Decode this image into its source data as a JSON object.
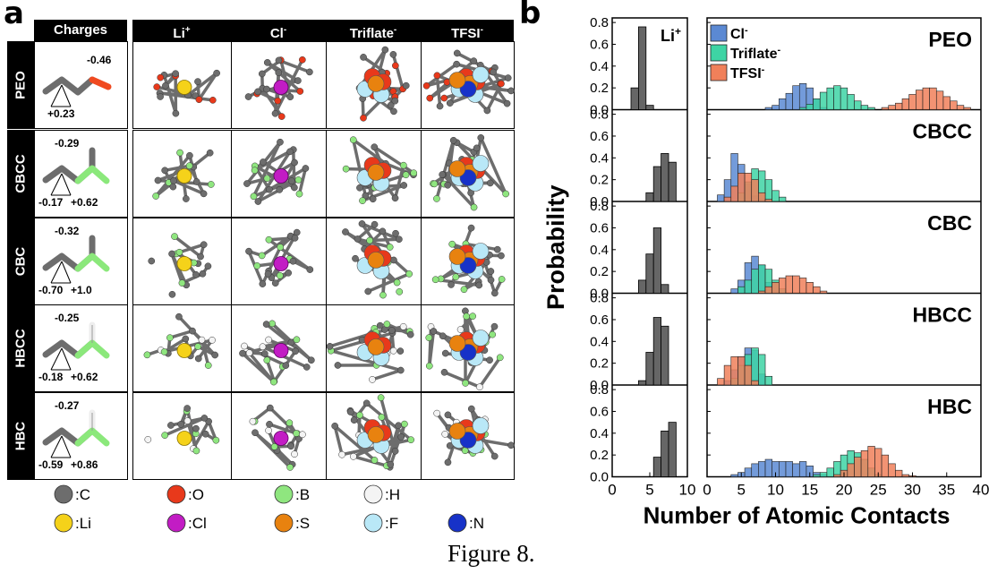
{
  "panel_a": {
    "letter": "a",
    "col_headers": [
      "Charges",
      "Li",
      "Cl",
      "Triflate",
      "TFSI"
    ],
    "col_header_superscripts": [
      "",
      "+",
      "-",
      "-",
      "-"
    ],
    "rows": [
      {
        "name": "PEO",
        "charges": [
          "-0.46",
          "+0.23"
        ],
        "charge_colors": [
          "#f04a20"
        ]
      },
      {
        "name": "CBCC",
        "charges": [
          "-0.29",
          "-0.17",
          "+0.62"
        ],
        "charge_colors": [
          "#8be87b"
        ]
      },
      {
        "name": "CBC",
        "charges": [
          "-0.32",
          "-0.70",
          "+1.0"
        ],
        "charge_colors": [
          "#8be87b"
        ]
      },
      {
        "name": "HBCC",
        "charges": [
          "-0.25",
          "-0.18",
          "+0.62"
        ],
        "charge_colors": [
          "#8be87b"
        ]
      },
      {
        "name": "HBC",
        "charges": [
          "-0.27",
          "-0.59",
          "+0.86"
        ],
        "charge_colors": [
          "#8be87b"
        ]
      }
    ],
    "atom_legend": [
      {
        "symbol": ":C",
        "color": "#6d6d6d"
      },
      {
        "symbol": ":O",
        "color": "#e8391b"
      },
      {
        "symbol": ":B",
        "color": "#8fe67f"
      },
      {
        "symbol": ":H",
        "color": "#f4f4f4"
      },
      {
        "symbol": ":Li",
        "color": "#f5d21a"
      },
      {
        "symbol": ":Cl",
        "color": "#c21cc4"
      },
      {
        "symbol": ":S",
        "color": "#e8820f"
      },
      {
        "symbol": ":F",
        "color": "#b9e8f7"
      },
      {
        "symbol": ":N",
        "color": "#1732c8"
      }
    ]
  },
  "panel_b": {
    "letter": "b",
    "ylabel": "Probability",
    "xlabel": "Number of Atomic Contacts",
    "li_label": "Li",
    "li_label_sup": "+",
    "legend": [
      {
        "name": "Cl",
        "sup": "-",
        "color": "#5b89d3"
      },
      {
        "name": "Triflate",
        "sup": "-",
        "color": "#3ed4a4"
      },
      {
        "name": "TFSI",
        "sup": "-",
        "color": "#f0805a"
      }
    ],
    "row_labels": [
      "PEO",
      "CBCC",
      "CBC",
      "HBCC",
      "HBC"
    ]
  },
  "chart_data": {
    "type": "bar",
    "subtype": "histogram",
    "ylim": [
      0,
      0.8
    ],
    "y_ticks": [
      "0.0",
      "0.2",
      "0.4",
      "0.6",
      "0.8"
    ],
    "left_xlim": [
      0,
      10
    ],
    "left_x_ticks": [
      "0",
      "5",
      "10"
    ],
    "right_xlim": [
      0,
      40
    ],
    "right_x_ticks": [
      "0",
      "5",
      "10",
      "15",
      "20",
      "25",
      "30",
      "35",
      "40"
    ],
    "li": {
      "PEO": {
        "x": [
          2,
          3,
          4,
          5
        ],
        "values": [
          0.0,
          0.2,
          0.76,
          0.04
        ]
      },
      "CBCC": {
        "x": [
          5,
          6,
          7,
          8
        ],
        "values": [
          0.08,
          0.32,
          0.44,
          0.36
        ]
      },
      "CBC": {
        "x": [
          4,
          5,
          6,
          7
        ],
        "values": [
          0.12,
          0.36,
          0.6,
          0.08
        ]
      },
      "HBCC": {
        "x": [
          4,
          5,
          6,
          7
        ],
        "values": [
          0.04,
          0.3,
          0.62,
          0.54
        ]
      },
      "HBC": {
        "x": [
          6,
          7,
          8
        ],
        "values": [
          0.18,
          0.42,
          0.5
        ]
      }
    },
    "anions": {
      "PEO": {
        "Cl": {
          "x": [
            9,
            10,
            11,
            12,
            13,
            14,
            15,
            16,
            17
          ],
          "values": [
            0.02,
            0.04,
            0.1,
            0.15,
            0.22,
            0.24,
            0.2,
            0.1,
            0.02
          ]
        },
        "Triflate": {
          "x": [
            14,
            15,
            16,
            17,
            18,
            19,
            20,
            21,
            22,
            23,
            24
          ],
          "values": [
            0.02,
            0.05,
            0.1,
            0.16,
            0.2,
            0.22,
            0.2,
            0.14,
            0.08,
            0.04,
            0.02
          ]
        },
        "TFSI": {
          "x": [
            26,
            27,
            28,
            29,
            30,
            31,
            32,
            33,
            34,
            35,
            36,
            37,
            38
          ],
          "values": [
            0.02,
            0.04,
            0.06,
            0.1,
            0.14,
            0.18,
            0.2,
            0.2,
            0.17,
            0.12,
            0.08,
            0.04,
            0.02
          ]
        }
      },
      "CBCC": {
        "Cl": {
          "x": [
            2,
            3,
            4,
            5,
            6,
            7,
            8
          ],
          "values": [
            0.06,
            0.2,
            0.44,
            0.34,
            0.16,
            0.05,
            0.02
          ]
        },
        "Triflate": {
          "x": [
            5,
            6,
            7,
            8,
            9,
            10,
            11
          ],
          "values": [
            0.08,
            0.18,
            0.3,
            0.28,
            0.2,
            0.1,
            0.04
          ]
        },
        "TFSI": {
          "x": [
            3,
            4,
            5,
            6,
            7,
            8,
            9
          ],
          "values": [
            0.04,
            0.14,
            0.26,
            0.26,
            0.2,
            0.08,
            0.02
          ]
        }
      },
      "CBC": {
        "Cl": {
          "x": [
            4,
            5,
            6,
            7,
            8,
            9,
            10
          ],
          "values": [
            0.04,
            0.12,
            0.28,
            0.34,
            0.26,
            0.1,
            0.02
          ]
        },
        "Triflate": {
          "x": [
            5,
            6,
            7,
            8,
            9,
            10,
            11
          ],
          "values": [
            0.06,
            0.12,
            0.22,
            0.26,
            0.22,
            0.12,
            0.04
          ]
        },
        "TFSI": {
          "x": [
            8,
            9,
            10,
            11,
            12,
            13,
            14,
            15,
            16,
            17
          ],
          "values": [
            0.02,
            0.06,
            0.1,
            0.14,
            0.16,
            0.16,
            0.14,
            0.1,
            0.06,
            0.02
          ]
        }
      },
      "HBCC": {
        "Cl": {
          "x": [
            3,
            4,
            5,
            6,
            7,
            8
          ],
          "values": [
            0.04,
            0.14,
            0.26,
            0.34,
            0.32,
            0.1
          ]
        },
        "Triflate": {
          "x": [
            4,
            5,
            6,
            7,
            8,
            9
          ],
          "values": [
            0.06,
            0.18,
            0.28,
            0.34,
            0.28,
            0.08
          ]
        },
        "TFSI": {
          "x": [
            2,
            3,
            4,
            5,
            6,
            7
          ],
          "values": [
            0.06,
            0.18,
            0.26,
            0.26,
            0.18,
            0.04
          ]
        }
      },
      "HBC": {
        "Cl": {
          "x": [
            4,
            5,
            6,
            7,
            8,
            9,
            10,
            11,
            12,
            13,
            14,
            15,
            16,
            17
          ],
          "values": [
            0.02,
            0.04,
            0.08,
            0.12,
            0.14,
            0.16,
            0.14,
            0.14,
            0.14,
            0.12,
            0.14,
            0.1,
            0.04,
            0.02
          ]
        },
        "Triflate": {
          "x": [
            16,
            17,
            18,
            19,
            20,
            21,
            22,
            23,
            24,
            25
          ],
          "values": [
            0.02,
            0.04,
            0.08,
            0.14,
            0.2,
            0.24,
            0.22,
            0.16,
            0.08,
            0.02
          ]
        },
        "TFSI": {
          "x": [
            19,
            20,
            21,
            22,
            23,
            24,
            25,
            26,
            27,
            28,
            29,
            30
          ],
          "values": [
            0.02,
            0.06,
            0.12,
            0.18,
            0.24,
            0.28,
            0.26,
            0.2,
            0.12,
            0.06,
            0.02,
            0.01
          ]
        }
      }
    }
  },
  "caption": "Figure 8."
}
